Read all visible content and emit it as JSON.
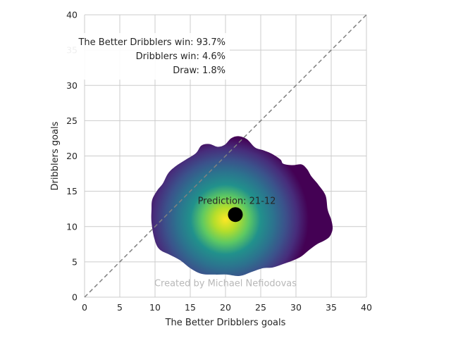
{
  "chart_data": {
    "type": "heatmap",
    "xlabel": "The Better Dribblers goals",
    "ylabel": "Dribblers goals",
    "xlim": [
      0,
      40
    ],
    "ylim": [
      0,
      40
    ],
    "xticks": [
      "0",
      "5",
      "10",
      "15",
      "20",
      "25",
      "30",
      "35",
      "40"
    ],
    "yticks": [
      "0",
      "5",
      "10",
      "15",
      "20",
      "25",
      "30",
      "35",
      "40"
    ],
    "grid": true,
    "colormap": "viridis",
    "density_peak": {
      "x": 20,
      "y": 11
    },
    "prediction": {
      "x": 21.4,
      "y": 11.7,
      "label": "Prediction: 21-12"
    },
    "diagonal": {
      "from": [
        0,
        0
      ],
      "to": [
        40,
        40
      ],
      "style": "dashed",
      "color": "#808080"
    },
    "probabilities": [
      "The Better Dribblers win: 93.7%",
      "Dribblers win: 4.6%",
      "Draw: 1.8%"
    ],
    "watermark": "Created by Michael Nefiodovas",
    "colors": {
      "grid": "#cccccc",
      "marker": "#000000",
      "low": "#440154",
      "mid": "#21918c",
      "high": "#fde725"
    }
  }
}
